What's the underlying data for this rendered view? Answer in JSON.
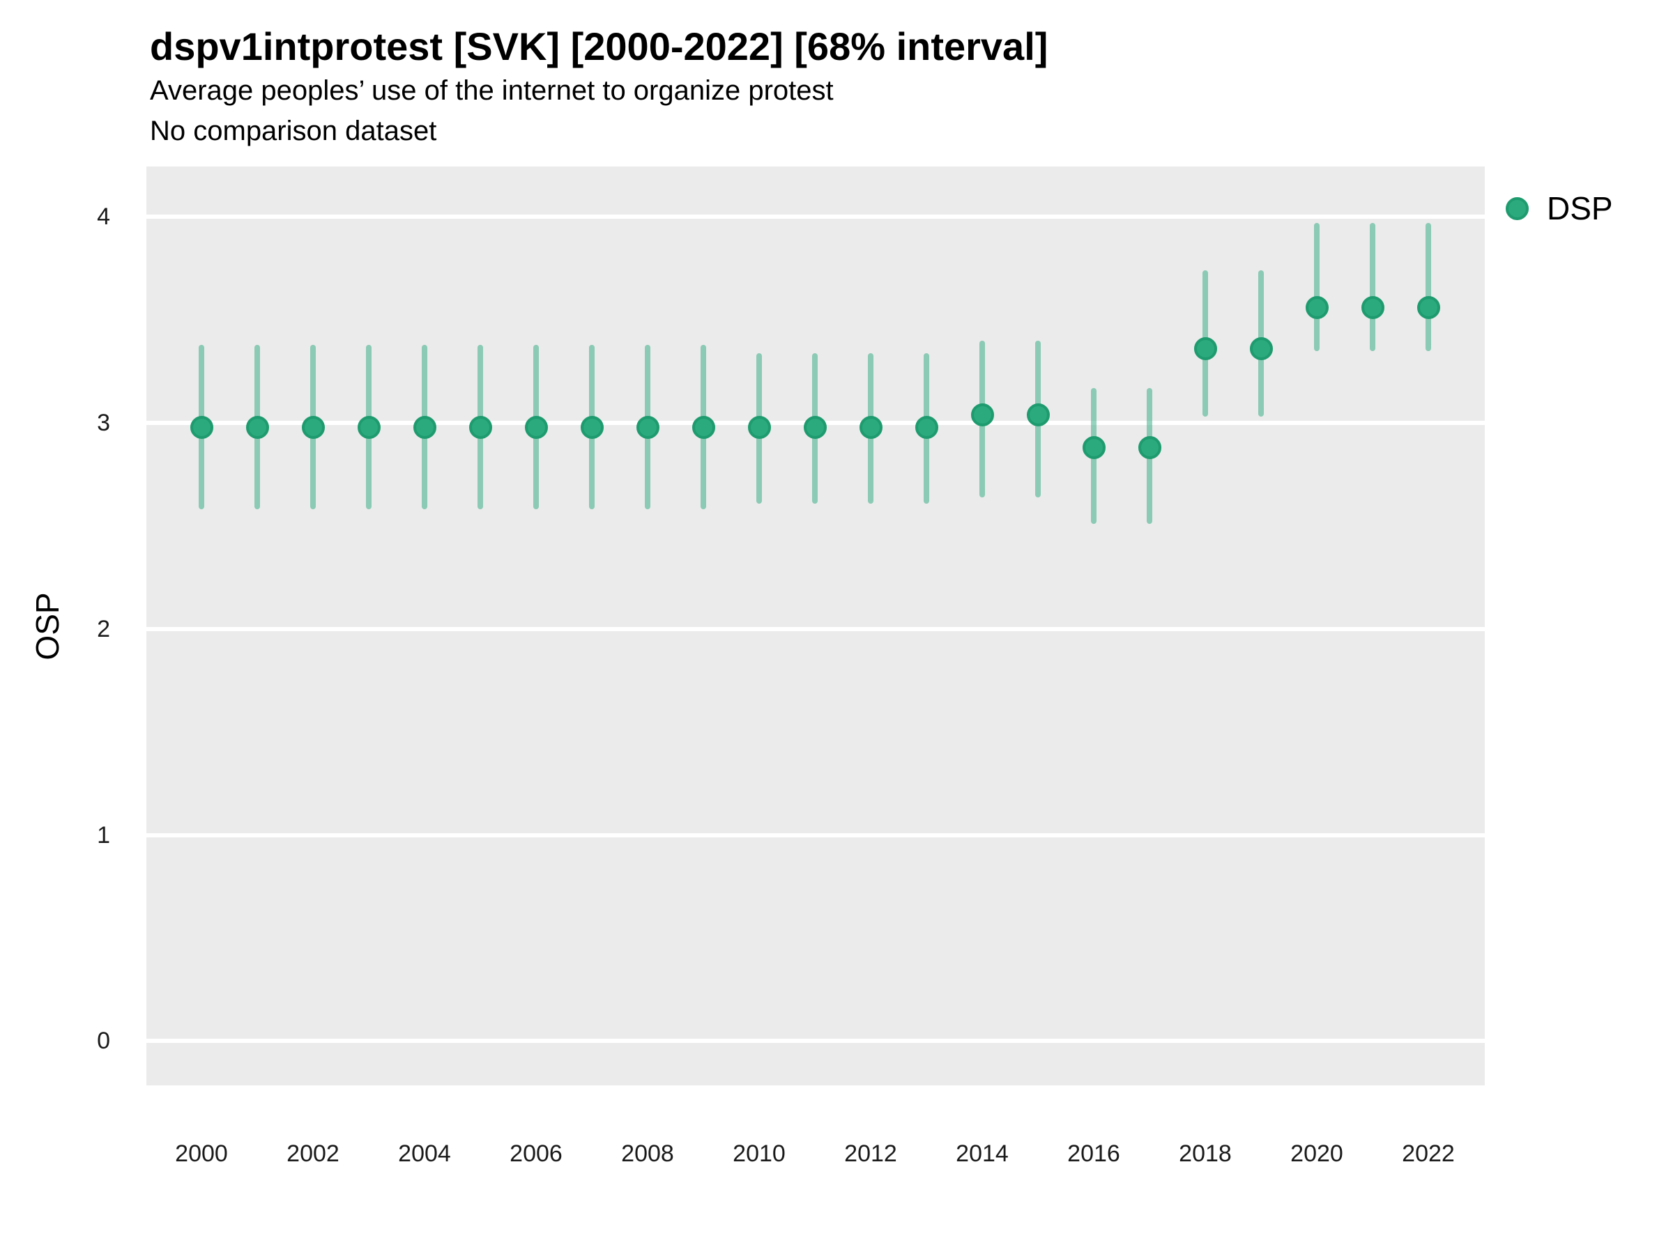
{
  "header": {
    "title": "dspv1intprotest [SVK] [2000-2022] [68% interval]",
    "subtitle1": "Average peoples’ use of the internet to organize protest",
    "subtitle2": "No comparison dataset"
  },
  "axes": {
    "y_title": "OSP",
    "y_ticks": [
      0,
      1,
      2,
      3,
      4
    ],
    "x_ticks": [
      2000,
      2002,
      2004,
      2006,
      2008,
      2010,
      2012,
      2014,
      2016,
      2018,
      2020,
      2022
    ]
  },
  "legend": {
    "label": "DSP"
  },
  "colors": {
    "point_fill": "#2BAA7D",
    "point_stroke": "#1E9B6F",
    "interval_bar": "rgba(44,170,125,0.5)",
    "panel_bg": "#EBEBEB",
    "gridline": "#FFFFFF"
  },
  "chart_data": {
    "type": "scatter",
    "subtype": "pointrange",
    "title": "dspv1intprotest [SVK] [2000-2022] [68% interval]",
    "xlabel": "",
    "ylabel": "OSP",
    "interval": "68%",
    "grid": "horizontal major gridlines only, white on gray panel",
    "legend_position": "right-top",
    "legend_entries": [
      "DSP"
    ],
    "ylim": [
      -0.215,
      4.245
    ],
    "x": [
      2000,
      2001,
      2002,
      2003,
      2004,
      2005,
      2006,
      2007,
      2008,
      2009,
      2010,
      2011,
      2012,
      2013,
      2014,
      2015,
      2016,
      2017,
      2018,
      2019,
      2020,
      2021,
      2022
    ],
    "series": [
      {
        "name": "DSP",
        "values": [
          2.98,
          2.98,
          2.98,
          2.98,
          2.98,
          2.98,
          2.98,
          2.98,
          2.98,
          2.98,
          2.98,
          2.98,
          2.98,
          2.98,
          3.04,
          3.04,
          2.88,
          2.88,
          3.36,
          3.36,
          3.56,
          3.56,
          3.56
        ],
        "low": [
          2.58,
          2.58,
          2.58,
          2.58,
          2.58,
          2.58,
          2.58,
          2.58,
          2.58,
          2.58,
          2.61,
          2.61,
          2.61,
          2.61,
          2.64,
          2.64,
          2.51,
          2.51,
          3.03,
          3.03,
          3.35,
          3.35,
          3.35
        ],
        "high": [
          3.38,
          3.38,
          3.38,
          3.38,
          3.38,
          3.38,
          3.38,
          3.38,
          3.38,
          3.38,
          3.34,
          3.34,
          3.34,
          3.34,
          3.4,
          3.4,
          3.17,
          3.17,
          3.74,
          3.74,
          3.97,
          3.97,
          3.97
        ]
      }
    ]
  }
}
